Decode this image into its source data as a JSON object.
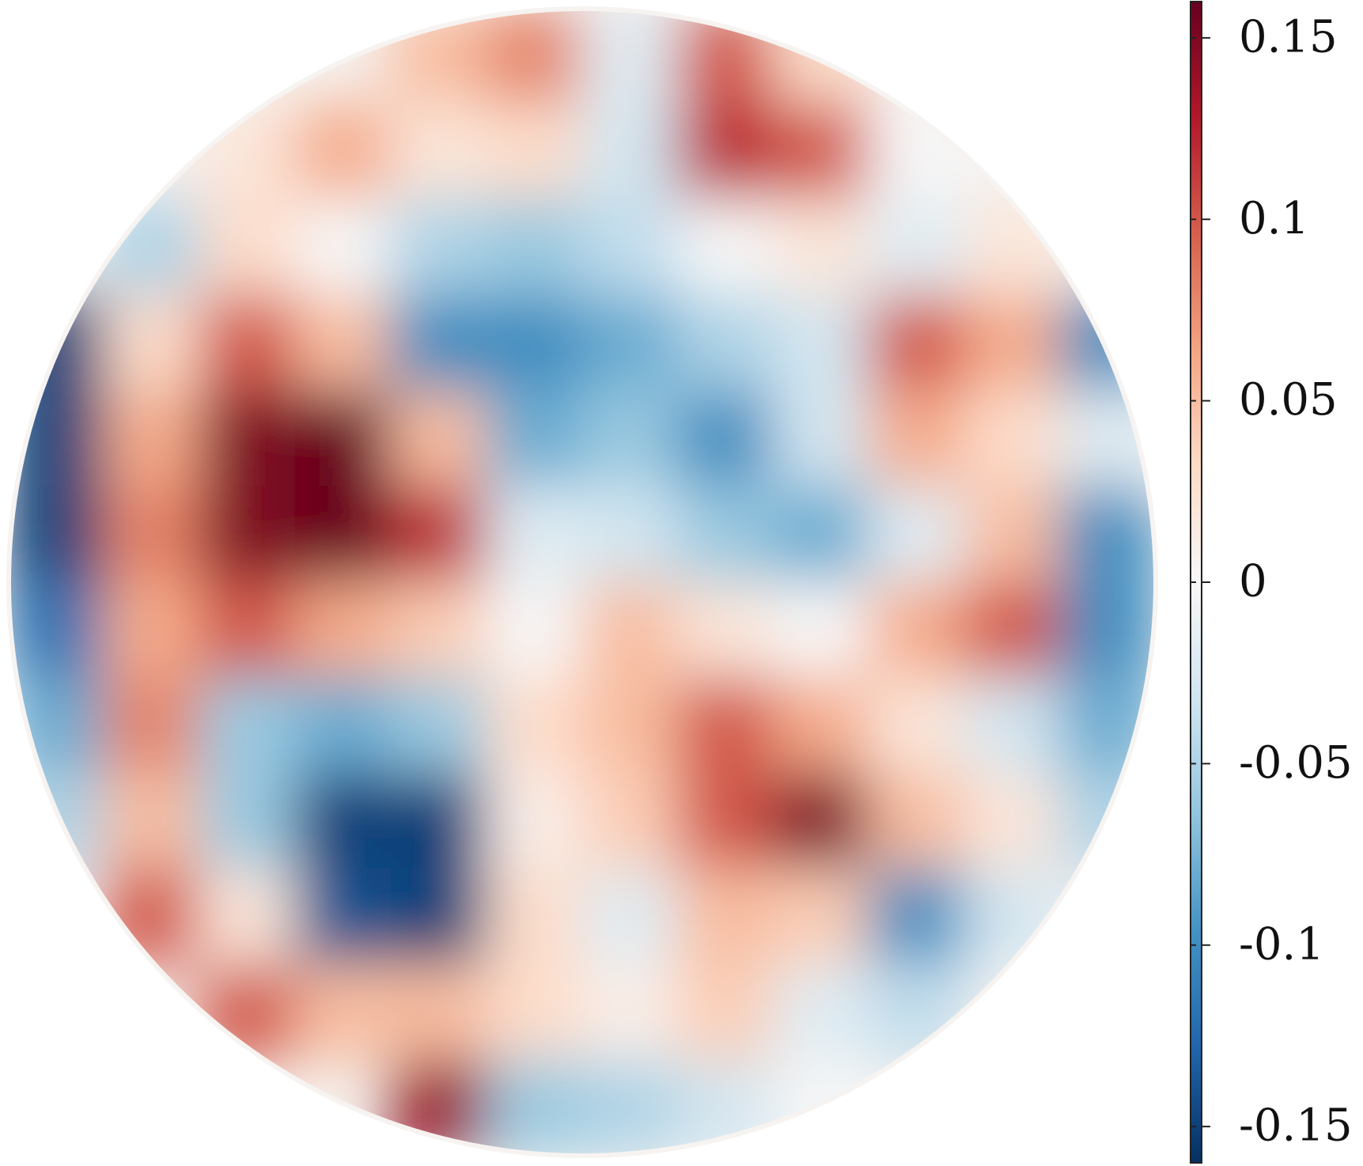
{
  "chart_data": {
    "type": "heatmap",
    "colormap": [
      "#053061",
      "#2166ac",
      "#4393c3",
      "#92c5de",
      "#d1e5f0",
      "#f7f7f7",
      "#fddbc7",
      "#f4a582",
      "#d6604d",
      "#b2182b",
      "#67001f"
    ],
    "clim": [
      -0.16,
      0.16
    ],
    "cticks": [
      -0.15,
      -0.1,
      -0.05,
      0,
      0.05,
      0.1,
      0.15
    ],
    "z": [
      [
        null,
        null,
        null,
        null,
        0.05,
        0.08,
        -0.02,
        0.1,
        0.03,
        null,
        null,
        null
      ],
      [
        null,
        null,
        0.02,
        0.06,
        0.02,
        0.03,
        -0.03,
        0.12,
        0.1,
        0.0,
        null,
        null
      ],
      [
        null,
        -0.05,
        0.03,
        0.0,
        -0.05,
        -0.06,
        -0.04,
        0.0,
        0.02,
        -0.02,
        0.02,
        null
      ],
      [
        -0.15,
        0.03,
        0.1,
        0.05,
        -0.1,
        -0.1,
        -0.08,
        -0.05,
        -0.03,
        0.1,
        0.06,
        -0.1
      ],
      [
        -0.15,
        0.06,
        0.15,
        0.16,
        0.05,
        -0.08,
        -0.06,
        -0.1,
        -0.03,
        0.06,
        0.03,
        -0.02
      ],
      [
        -0.15,
        0.08,
        0.15,
        0.16,
        0.12,
        -0.02,
        -0.03,
        -0.06,
        -0.08,
        -0.02,
        0.05,
        -0.1
      ],
      [
        -0.12,
        0.06,
        0.1,
        0.06,
        0.04,
        0.0,
        0.05,
        0.02,
        0.0,
        0.06,
        0.1,
        -0.1
      ],
      [
        -0.08,
        0.08,
        -0.06,
        -0.08,
        -0.06,
        0.03,
        0.05,
        0.1,
        0.06,
        0.02,
        -0.03,
        -0.08
      ],
      [
        -0.05,
        0.05,
        -0.06,
        -0.15,
        -0.15,
        0.01,
        0.04,
        0.1,
        0.15,
        0.05,
        0.02,
        -0.05
      ],
      [
        null,
        0.1,
        0.02,
        -0.14,
        -0.15,
        0.03,
        -0.02,
        0.05,
        0.04,
        -0.1,
        -0.03,
        null
      ],
      [
        null,
        null,
        0.1,
        0.05,
        0.05,
        0.03,
        0.01,
        0.04,
        -0.02,
        -0.04,
        null,
        null
      ],
      [
        null,
        null,
        null,
        null,
        0.14,
        -0.06,
        -0.05,
        -0.03,
        0.0,
        null,
        null,
        null
      ]
    ]
  }
}
